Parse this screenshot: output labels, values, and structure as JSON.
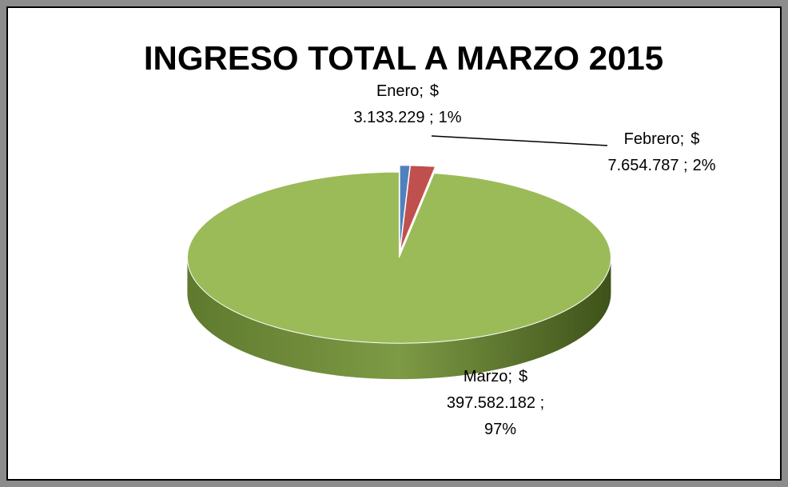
{
  "chart_data": {
    "type": "pie3d",
    "title": "INGRESO TOTAL A MARZO 2015",
    "categories": [
      "Enero",
      "Febrero",
      "Marzo"
    ],
    "values": [
      3133229,
      7654787,
      397582182
    ],
    "value_labels": [
      "$ 3.133.229",
      "$ 7.654.787",
      "$ 397.582.182"
    ],
    "percent_labels": [
      "1%",
      "2%",
      "97%"
    ],
    "label_separator": ";",
    "colors": [
      "#4f81bd",
      "#c0504d",
      "#9bbb59"
    ]
  }
}
